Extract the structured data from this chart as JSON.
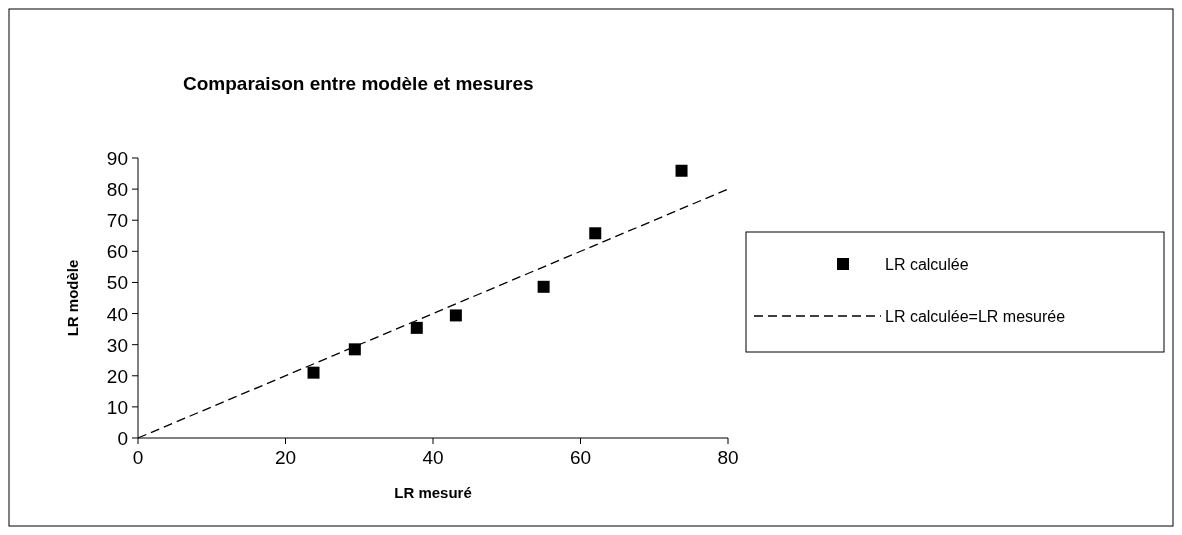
{
  "chart_data": {
    "type": "scatter",
    "title": "Comparaison entre modèle et mesures",
    "xlabel": "LR mesuré",
    "ylabel": "LR modèle",
    "xlim": [
      0,
      80
    ],
    "xticks": [
      0,
      20,
      40,
      60,
      80
    ],
    "ylim": [
      0,
      90
    ],
    "yticks": [
      0,
      10,
      20,
      30,
      40,
      50,
      60,
      70,
      80,
      90
    ],
    "grid": false,
    "legend": "right",
    "series": [
      {
        "name": "LR calculée",
        "marker": "square",
        "color": "#000000",
        "x": [
          23.8,
          29.4,
          37.8,
          43.1,
          55.0,
          62.0,
          73.7
        ],
        "values": [
          21.0,
          28.5,
          35.4,
          39.4,
          48.6,
          65.8,
          85.9
        ]
      },
      {
        "name": "LR calculée=LR mesurée",
        "type": "line",
        "line_style": "dashed",
        "marker": "none",
        "color": "#000000",
        "x": [
          0,
          80
        ],
        "values": [
          0,
          80
        ]
      }
    ]
  }
}
